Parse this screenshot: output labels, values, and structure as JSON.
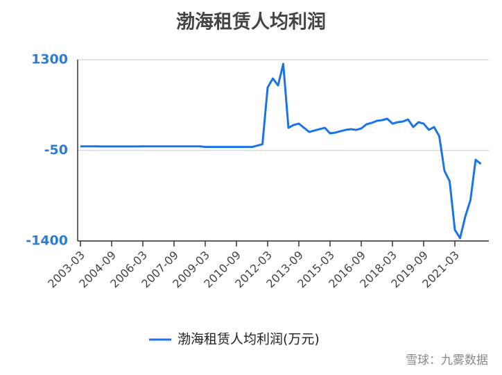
{
  "chart_data": {
    "type": "line",
    "title": "渤海租赁人均利润",
    "categories": [
      "2003-03",
      null,
      null,
      null,
      null,
      null,
      "2004-09",
      null,
      null,
      null,
      null,
      null,
      "2006-03",
      null,
      null,
      null,
      null,
      null,
      "2007-09",
      null,
      null,
      null,
      null,
      null,
      "2009-03",
      null,
      null,
      null,
      null,
      null,
      "2010-09",
      null,
      null,
      null,
      null,
      null,
      "2012-03",
      null,
      null,
      null,
      null,
      null,
      "2013-09",
      null,
      null,
      null,
      null,
      null,
      "2015-03",
      null,
      null,
      null,
      null,
      null,
      "2016-09",
      null,
      null,
      null,
      null,
      null,
      "2018-03",
      null,
      null,
      null,
      null,
      null,
      "2019-09",
      null,
      null,
      null,
      null,
      null,
      "2021-03",
      null,
      null,
      null,
      null,
      null
    ],
    "series": [
      {
        "name": "渤海租赁人均利润(万元)",
        "color": "#1a73e8",
        "values": [
          10,
          10,
          10,
          10,
          8,
          8,
          8,
          8,
          8,
          8,
          8,
          8,
          10,
          10,
          10,
          10,
          10,
          10,
          10,
          10,
          10,
          10,
          10,
          10,
          0,
          0,
          0,
          0,
          0,
          0,
          0,
          0,
          0,
          0,
          20,
          40,
          886,
          1021,
          917,
          1238,
          286,
          328,
          348,
          286,
          224,
          245,
          266,
          286,
          203,
          214,
          235,
          255,
          266,
          255,
          276,
          338,
          359,
          390,
          400,
          421,
          348,
          369,
          379,
          410,
          297,
          369,
          348,
          255,
          297,
          162,
          -355,
          -510,
          -1234,
          -1358,
          -1038,
          -790,
          -190,
          -252
        ]
      }
    ],
    "ylim": [
      -1400,
      1300
    ],
    "yticks": [
      -1400,
      -50,
      1300
    ],
    "grid": true,
    "watermark": "雪球：九雾数据"
  }
}
